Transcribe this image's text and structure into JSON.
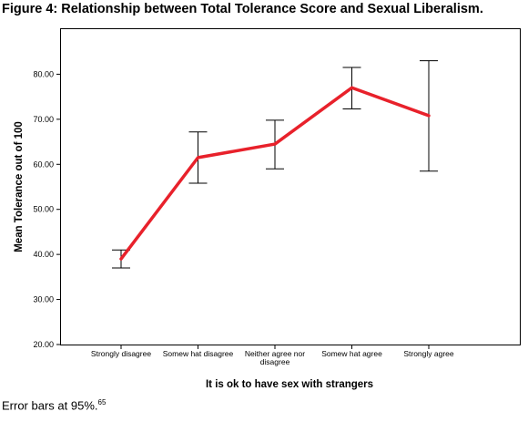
{
  "figure": {
    "title": "Figure 4: Relationship between Total Tolerance Score and Sexual Liberalism.",
    "footnote": "Error bars at 95%.",
    "footnote_ref": "65"
  },
  "chart_data": {
    "type": "line",
    "xlabel": "It is ok to have sex with strangers",
    "ylabel": "Mean Tolerance out of 100",
    "ylim": [
      20,
      90
    ],
    "yticks": [
      "20.00",
      "30.00",
      "40.00",
      "50.00",
      "60.00",
      "70.00",
      "80.00"
    ],
    "ytick_values": [
      20,
      30,
      40,
      50,
      60,
      70,
      80
    ],
    "categories": [
      [
        "Strongly disagree"
      ],
      [
        "Somew hat disagree"
      ],
      [
        "Neither agree nor",
        "disagree"
      ],
      [
        "Somew hat agree"
      ],
      [
        "Strongly agree"
      ]
    ],
    "values": [
      39.0,
      61.5,
      64.5,
      77.0,
      70.8
    ],
    "error_low": [
      37.0,
      55.8,
      59.0,
      72.3,
      58.5
    ],
    "error_high": [
      41.0,
      67.2,
      69.8,
      81.5,
      83.0
    ],
    "line_color": "#e8212b",
    "grid": false
  }
}
